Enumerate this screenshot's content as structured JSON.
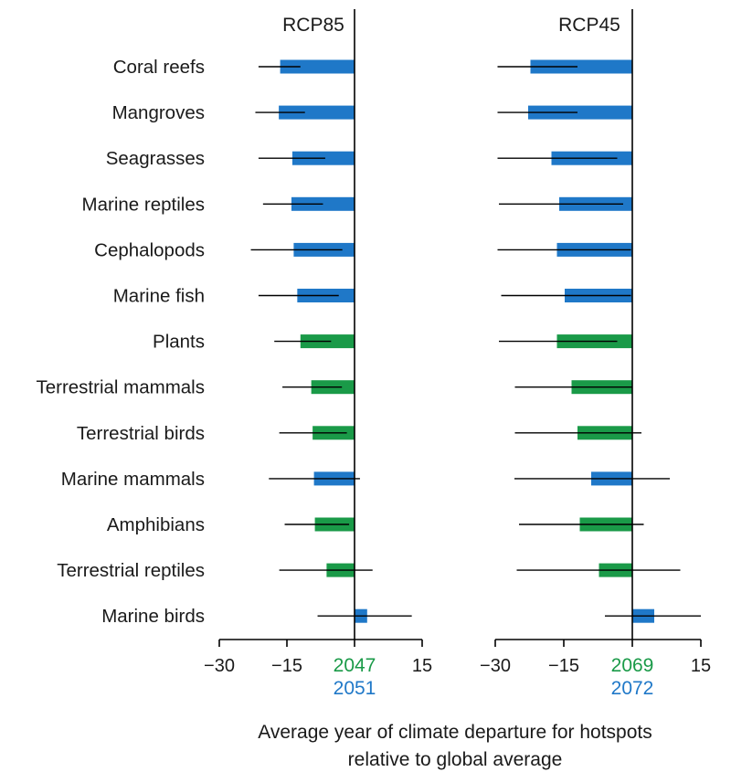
{
  "colors": {
    "marine": "#1f78c8",
    "terrestrial": "#1a9a48",
    "axis": "#000000",
    "text": "#1a1a1a"
  },
  "chart_data": {
    "type": "bar",
    "orientation": "horizontal",
    "xlabel_line1": "Average year of climate departure for hotspots",
    "xlabel_line2": "relative to global average",
    "categories": [
      {
        "label": "Coral reefs",
        "group": "marine"
      },
      {
        "label": "Mangroves",
        "group": "marine"
      },
      {
        "label": "Seagrasses",
        "group": "marine"
      },
      {
        "label": "Marine reptiles",
        "group": "marine"
      },
      {
        "label": "Cephalopods",
        "group": "marine"
      },
      {
        "label": "Marine fish",
        "group": "marine"
      },
      {
        "label": "Plants",
        "group": "terrestrial"
      },
      {
        "label": "Terrestrial mammals",
        "group": "terrestrial"
      },
      {
        "label": "Terrestrial birds",
        "group": "terrestrial"
      },
      {
        "label": "Marine mammals",
        "group": "marine"
      },
      {
        "label": "Amphibians",
        "group": "terrestrial"
      },
      {
        "label": "Terrestrial reptiles",
        "group": "terrestrial"
      },
      {
        "label": "Marine birds",
        "group": "marine"
      }
    ],
    "panels": [
      {
        "title": "RCP85",
        "xlim": [
          -30,
          15
        ],
        "xticks": [
          "−30",
          "−15",
          "0",
          "15"
        ],
        "tick_values": [
          -30,
          -15,
          0,
          15
        ],
        "terrestrial_ref_year": "2047",
        "marine_ref_year": "2051",
        "values": [
          -16.5,
          -16.8,
          -13.8,
          -14.0,
          -13.5,
          -12.7,
          -12.0,
          -9.6,
          -9.3,
          -9.0,
          -8.8,
          -6.2,
          2.8
        ],
        "ci_low": [
          -21.3,
          -22.0,
          -21.3,
          -20.3,
          -23.0,
          -21.3,
          -17.8,
          -16.0,
          -16.7,
          -19.0,
          -15.5,
          -16.7,
          -8.2
        ],
        "ci_high": [
          -12.0,
          -11.0,
          -6.5,
          -7.0,
          -2.7,
          -3.5,
          -5.2,
          -2.8,
          -1.7,
          1.2,
          -1.2,
          4.0,
          12.7
        ]
      },
      {
        "title": "RCP45",
        "xlim": [
          -30,
          15
        ],
        "xticks": [
          "−30",
          "−15",
          "0",
          "15"
        ],
        "tick_values": [
          -30,
          -15,
          0,
          15
        ],
        "terrestrial_ref_year": "2069",
        "marine_ref_year": "2072",
        "values": [
          -22.3,
          -22.8,
          -17.7,
          -16.0,
          -16.5,
          -14.8,
          -16.5,
          -13.3,
          -12.0,
          -9.0,
          -11.5,
          -7.3,
          4.8
        ],
        "ci_low": [
          -29.5,
          -29.5,
          -29.5,
          -29.2,
          -29.5,
          -28.7,
          -29.2,
          -25.7,
          -25.7,
          -25.8,
          -24.8,
          -25.3,
          -6.0
        ],
        "ci_high": [
          -12.0,
          -12.0,
          -3.3,
          -2.0,
          -0.3,
          -0.3,
          -3.3,
          0.0,
          2.0,
          8.2,
          2.5,
          10.5,
          15.0
        ]
      }
    ]
  }
}
